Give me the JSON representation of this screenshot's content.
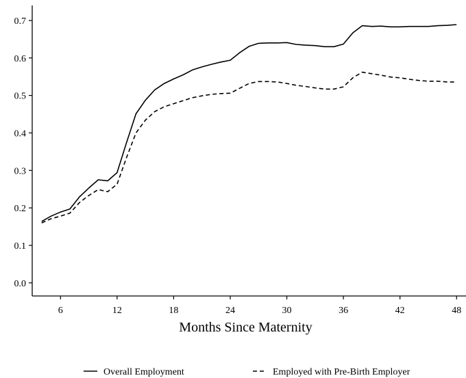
{
  "chart_data": {
    "type": "line",
    "title": "",
    "xlabel": "Months Since Maternity",
    "ylabel": "",
    "xlim": [
      3,
      49
    ],
    "ylim": [
      -0.035,
      0.74
    ],
    "x_ticks": [
      6,
      12,
      18,
      24,
      30,
      36,
      42,
      48
    ],
    "y_ticks": [
      0.0,
      0.1,
      0.2,
      0.3,
      0.4,
      0.5,
      0.6,
      0.7
    ],
    "y_tick_labels": [
      "0.0",
      "0.1",
      "0.2",
      "0.3",
      "0.4",
      "0.5",
      "0.6",
      "0.7"
    ],
    "grid": false,
    "legend_position": "bottom",
    "x": [
      4,
      5,
      6,
      7,
      8,
      9,
      10,
      11,
      12,
      13,
      14,
      15,
      16,
      17,
      18,
      19,
      20,
      21,
      22,
      23,
      24,
      25,
      26,
      27,
      28,
      29,
      30,
      31,
      32,
      33,
      34,
      35,
      36,
      37,
      38,
      39,
      40,
      41,
      42,
      43,
      44,
      45,
      46,
      47,
      48
    ],
    "series": [
      {
        "name": "Overall Employment",
        "style": "solid",
        "color": "#000000",
        "values": [
          0.164,
          0.178,
          0.189,
          0.197,
          0.229,
          0.253,
          0.275,
          0.272,
          0.294,
          0.374,
          0.451,
          0.487,
          0.515,
          0.532,
          0.544,
          0.555,
          0.568,
          0.576,
          0.583,
          0.589,
          0.594,
          0.614,
          0.631,
          0.639,
          0.64,
          0.64,
          0.641,
          0.636,
          0.634,
          0.633,
          0.63,
          0.63,
          0.637,
          0.667,
          0.686,
          0.684,
          0.685,
          0.683,
          0.683,
          0.684,
          0.684,
          0.684,
          0.686,
          0.687,
          0.689
        ]
      },
      {
        "name": "Employed with Pre-Birth Employer",
        "style": "dashed",
        "color": "#000000",
        "values": [
          0.16,
          0.171,
          0.178,
          0.186,
          0.214,
          0.233,
          0.249,
          0.243,
          0.263,
          0.334,
          0.4,
          0.434,
          0.457,
          0.47,
          0.478,
          0.486,
          0.494,
          0.499,
          0.503,
          0.505,
          0.506,
          0.519,
          0.532,
          0.537,
          0.537,
          0.536,
          0.532,
          0.527,
          0.524,
          0.52,
          0.517,
          0.517,
          0.523,
          0.547,
          0.562,
          0.558,
          0.554,
          0.549,
          0.547,
          0.543,
          0.54,
          0.538,
          0.538,
          0.536,
          0.536
        ]
      }
    ]
  }
}
